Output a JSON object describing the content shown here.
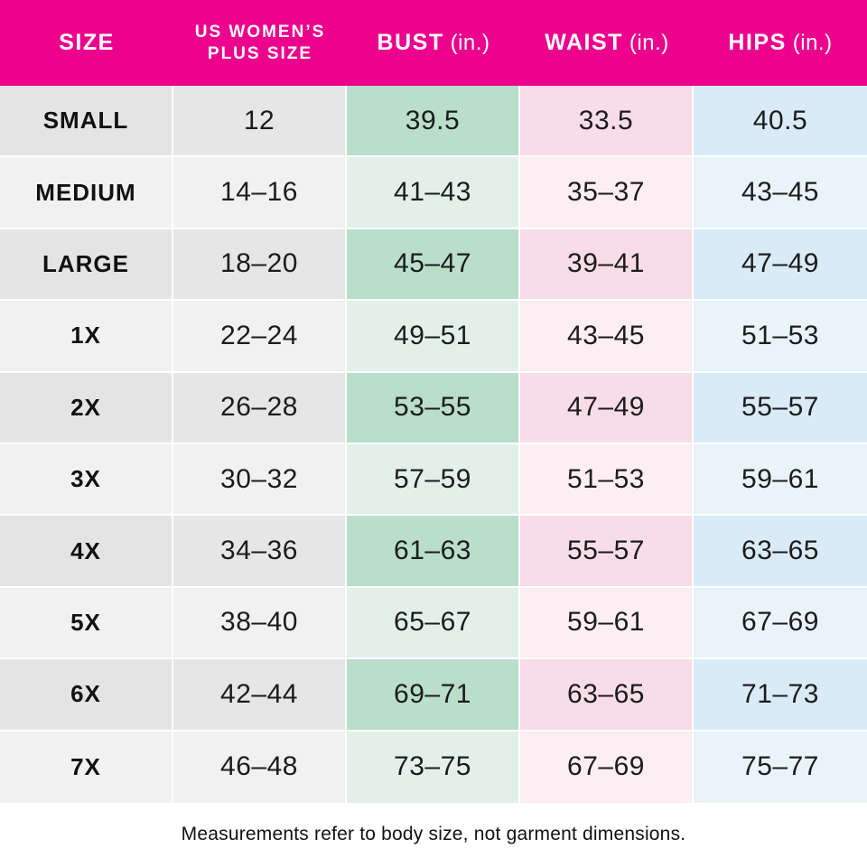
{
  "header": {
    "size_label": "SIZE",
    "plus_size_line1": "US WOMEN’S",
    "plus_size_line2": "PLUS SIZE",
    "bust_label": "BUST",
    "bust_unit": "(in.)",
    "waist_label": "WAIST",
    "waist_unit": "(in.)",
    "hips_label": "HIPS",
    "hips_unit": "(in.)"
  },
  "rows": [
    {
      "size": "SMALL",
      "plus_size": "12",
      "bust": "39.5",
      "waist": "33.5",
      "hips": "40.5"
    },
    {
      "size": "MEDIUM",
      "plus_size": "14–16",
      "bust": "41–43",
      "waist": "35–37",
      "hips": "43–45"
    },
    {
      "size": "LARGE",
      "plus_size": "18–20",
      "bust": "45–47",
      "waist": "39–41",
      "hips": "47–49"
    },
    {
      "size": "1X",
      "plus_size": "22–24",
      "bust": "49–51",
      "waist": "43–45",
      "hips": "51–53"
    },
    {
      "size": "2X",
      "plus_size": "26–28",
      "bust": "53–55",
      "waist": "47–49",
      "hips": "55–57"
    },
    {
      "size": "3X",
      "plus_size": "30–32",
      "bust": "57–59",
      "waist": "51–53",
      "hips": "59–61"
    },
    {
      "size": "4X",
      "plus_size": "34–36",
      "bust": "61–63",
      "waist": "55–57",
      "hips": "63–65"
    },
    {
      "size": "5X",
      "plus_size": "38–40",
      "bust": "65–67",
      "waist": "59–61",
      "hips": "67–69"
    },
    {
      "size": "6X",
      "plus_size": "42–44",
      "bust": "69–71",
      "waist": "63–65",
      "hips": "71–73"
    },
    {
      "size": "7X",
      "plus_size": "46–48",
      "bust": "73–75",
      "waist": "67–69",
      "hips": "75–77"
    }
  ],
  "footnote": "Measurements refer to body size, not garment dimensions.",
  "colors": {
    "header_bg": "#EC028C",
    "header_text": "#FFFFFF",
    "bust_odd": "#B9DECA",
    "bust_even": "#E2F0E9",
    "waist_odd": "#F8DCE8",
    "waist_even": "#FCEEF3",
    "hips_odd": "#D9EBF6",
    "hips_even": "#E9F3FA",
    "gray_odd": "#E4E4E4",
    "gray_even": "#F1F1F1"
  },
  "chart_data": {
    "type": "table",
    "columns": [
      "SIZE",
      "US WOMEN’S PLUS SIZE",
      "BUST (in.)",
      "WAIST (in.)",
      "HIPS (in.)"
    ],
    "rows": [
      [
        "SMALL",
        "12",
        "39.5",
        "33.5",
        "40.5"
      ],
      [
        "MEDIUM",
        "14–16",
        "41–43",
        "35–37",
        "43–45"
      ],
      [
        "LARGE",
        "18–20",
        "45–47",
        "39–41",
        "47–49"
      ],
      [
        "1X",
        "22–24",
        "49–51",
        "43–45",
        "51–53"
      ],
      [
        "2X",
        "26–28",
        "53–55",
        "47–49",
        "55–57"
      ],
      [
        "3X",
        "30–32",
        "57–59",
        "51–53",
        "59–61"
      ],
      [
        "4X",
        "34–36",
        "61–63",
        "55–57",
        "63–65"
      ],
      [
        "5X",
        "38–40",
        "65–67",
        "59–61",
        "67–69"
      ],
      [
        "6X",
        "42–44",
        "69–71",
        "63–65",
        "71–73"
      ],
      [
        "7X",
        "46–48",
        "73–75",
        "67–69",
        "75–77"
      ]
    ],
    "footnote": "Measurements refer to body size, not garment dimensions."
  }
}
